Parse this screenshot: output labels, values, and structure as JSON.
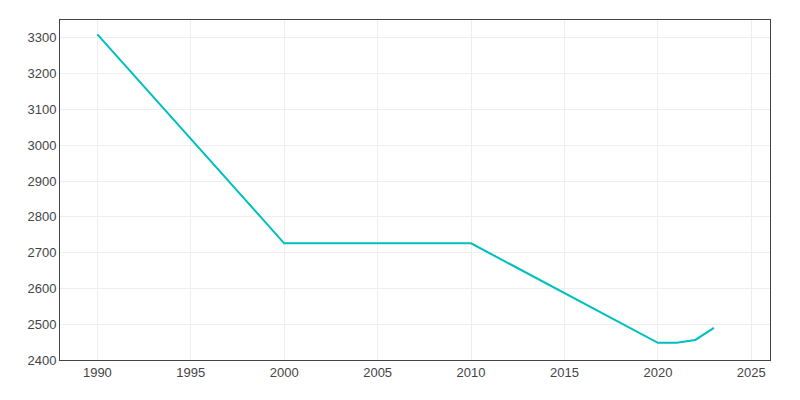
{
  "chart_data": {
    "type": "line",
    "x": [
      1990,
      2000,
      2010,
      2020,
      2021,
      2022,
      2023
    ],
    "values": [
      3310,
      2726,
      2726,
      2448,
      2448,
      2456,
      2490
    ],
    "color": "#00BFBF",
    "xlim": [
      1988,
      2026
    ],
    "ylim": [
      2400,
      3350
    ],
    "xticks": [
      1990,
      1995,
      2000,
      2005,
      2010,
      2015,
      2020,
      2025
    ],
    "yticks": [
      2400,
      2500,
      2600,
      2700,
      2800,
      2900,
      3000,
      3100,
      3200,
      3300
    ],
    "grid": true
  }
}
